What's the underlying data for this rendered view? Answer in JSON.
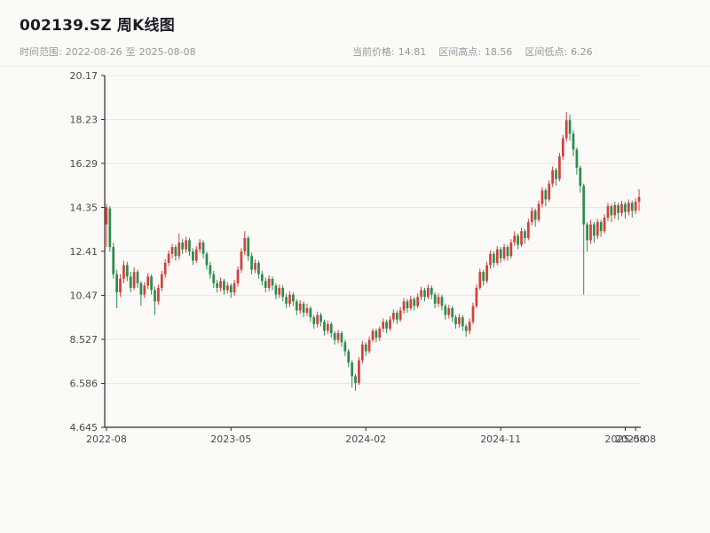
{
  "header": {
    "title": "002139.SZ 周K线图"
  },
  "meta": {
    "time_range_label": "时间范围:",
    "time_start": "2022-08-26",
    "time_separator": "至",
    "time_end": "2025-08-08",
    "current_price_label": "当前价格:",
    "current_price": "14.81",
    "range_high_label": "区间高点:",
    "range_high": "18.56",
    "range_low_label": "区间低点:",
    "range_low": "6.26"
  },
  "chart_data": {
    "type": "candlestick",
    "title": "002139.SZ 周K线图",
    "interval": "weekly",
    "start_date": "2022-08-26",
    "end_date": "2025-08-08",
    "current_price": 14.81,
    "range_high": 18.56,
    "range_low": 6.26,
    "grid": "horizontal",
    "legend_position": "none",
    "up_color": "#d2413a",
    "down_color": "#2e8b50",
    "axis_color": "#2b2b2b",
    "grid_color": "#e8e7e2",
    "ylim": [
      4.645,
      20.17
    ],
    "y_ticks": [
      {
        "label": "20.17",
        "value": 20.17
      },
      {
        "label": "18.23",
        "value": 18.23
      },
      {
        "label": "16.29",
        "value": 16.29
      },
      {
        "label": "14.35",
        "value": 14.35
      },
      {
        "label": "12.41",
        "value": 12.41
      },
      {
        "label": "10.47",
        "value": 10.47
      },
      {
        "label": "8.527",
        "value": 8.527
      },
      {
        "label": "6.586",
        "value": 6.586
      },
      {
        "label": "4.645",
        "value": 4.645
      }
    ],
    "x_ticks": [
      {
        "index": 0,
        "label": "2022-08"
      },
      {
        "index": 36,
        "label": "2023-05"
      },
      {
        "index": 75,
        "label": "2024-02"
      },
      {
        "index": 114,
        "label": "2024-11"
      },
      {
        "index": 150,
        "label": "2025-08"
      },
      {
        "index": 153,
        "label": "2025-08"
      }
    ],
    "candles_format": [
      "open",
      "high",
      "low",
      "close"
    ],
    "candles": [
      [
        13.6,
        14.5,
        12.6,
        14.35
      ],
      [
        14.3,
        14.4,
        12.4,
        12.6
      ],
      [
        12.6,
        12.8,
        11.2,
        11.4
      ],
      [
        11.4,
        11.6,
        9.9,
        10.6
      ],
      [
        10.6,
        11.4,
        10.4,
        11.2
      ],
      [
        11.2,
        12.0,
        11.0,
        11.8
      ],
      [
        11.8,
        11.95,
        11.1,
        11.3
      ],
      [
        11.3,
        11.5,
        10.6,
        10.8
      ],
      [
        10.8,
        11.7,
        10.7,
        11.5
      ],
      [
        11.5,
        11.6,
        10.8,
        11.0
      ],
      [
        11.0,
        11.1,
        10.0,
        10.5
      ],
      [
        10.5,
        11.05,
        10.35,
        10.9
      ],
      [
        10.9,
        11.45,
        10.75,
        11.3
      ],
      [
        11.3,
        11.4,
        10.5,
        10.7
      ],
      [
        10.7,
        10.85,
        9.6,
        10.2
      ],
      [
        10.2,
        10.95,
        10.05,
        10.8
      ],
      [
        10.8,
        11.55,
        10.65,
        11.4
      ],
      [
        11.4,
        12.05,
        11.25,
        11.9
      ],
      [
        11.9,
        12.45,
        11.75,
        12.3
      ],
      [
        12.3,
        12.75,
        12.1,
        12.6
      ],
      [
        12.6,
        12.7,
        12.0,
        12.2
      ],
      [
        12.2,
        13.2,
        12.05,
        12.8
      ],
      [
        12.8,
        12.95,
        12.3,
        12.5
      ],
      [
        12.5,
        13.05,
        12.35,
        12.9
      ],
      [
        12.9,
        13.0,
        12.2,
        12.4
      ],
      [
        12.4,
        12.55,
        11.8,
        12.0
      ],
      [
        12.0,
        12.65,
        11.9,
        12.5
      ],
      [
        12.5,
        12.95,
        12.35,
        12.8
      ],
      [
        12.8,
        12.9,
        12.1,
        12.3
      ],
      [
        12.3,
        12.4,
        11.6,
        11.8
      ],
      [
        11.8,
        11.95,
        11.2,
        11.4
      ],
      [
        11.4,
        11.55,
        10.8,
        11.0
      ],
      [
        11.0,
        11.15,
        10.6,
        10.8
      ],
      [
        10.8,
        11.25,
        10.65,
        11.1
      ],
      [
        11.1,
        11.2,
        10.5,
        10.7
      ],
      [
        10.7,
        11.05,
        10.55,
        10.9
      ],
      [
        10.9,
        11.0,
        10.35,
        10.6
      ],
      [
        10.6,
        11.15,
        10.45,
        11.0
      ],
      [
        11.0,
        11.75,
        10.85,
        11.6
      ],
      [
        11.6,
        12.55,
        11.45,
        12.4
      ],
      [
        12.4,
        13.3,
        12.25,
        13.0
      ],
      [
        13.0,
        13.1,
        12.0,
        12.2
      ],
      [
        12.2,
        12.35,
        11.4,
        11.6
      ],
      [
        11.6,
        12.05,
        11.45,
        11.9
      ],
      [
        11.9,
        12.0,
        11.2,
        11.4
      ],
      [
        11.4,
        11.55,
        10.9,
        11.1
      ],
      [
        11.1,
        11.25,
        10.6,
        10.8
      ],
      [
        10.8,
        11.35,
        10.65,
        11.2
      ],
      [
        11.2,
        11.3,
        10.7,
        10.9
      ],
      [
        10.9,
        11.0,
        10.3,
        10.5
      ],
      [
        10.5,
        10.95,
        10.35,
        10.8
      ],
      [
        10.8,
        10.9,
        10.2,
        10.4
      ],
      [
        10.4,
        10.55,
        9.9,
        10.1
      ],
      [
        10.1,
        10.65,
        9.95,
        10.5
      ],
      [
        10.5,
        10.6,
        10.0,
        10.2
      ],
      [
        10.2,
        10.3,
        9.6,
        9.8
      ],
      [
        9.8,
        10.25,
        9.65,
        10.1
      ],
      [
        10.1,
        10.2,
        9.5,
        9.7
      ],
      [
        9.7,
        10.1,
        9.55,
        9.9
      ],
      [
        9.9,
        10.0,
        9.3,
        9.5
      ],
      [
        9.5,
        9.6,
        9.0,
        9.2
      ],
      [
        9.2,
        9.75,
        9.05,
        9.6
      ],
      [
        9.6,
        9.7,
        9.1,
        9.3
      ],
      [
        9.3,
        9.4,
        8.7,
        8.9
      ],
      [
        8.9,
        9.35,
        8.75,
        9.2
      ],
      [
        9.2,
        9.3,
        8.6,
        8.8
      ],
      [
        8.8,
        8.9,
        8.3,
        8.5
      ],
      [
        8.5,
        8.95,
        8.35,
        8.8
      ],
      [
        8.8,
        8.9,
        8.2,
        8.4
      ],
      [
        8.4,
        8.5,
        7.8,
        8.0
      ],
      [
        8.0,
        8.1,
        7.3,
        7.5
      ],
      [
        7.5,
        7.6,
        6.4,
        6.9
      ],
      [
        6.9,
        7.0,
        6.26,
        6.6
      ],
      [
        6.6,
        7.75,
        6.5,
        7.6
      ],
      [
        7.6,
        8.45,
        7.45,
        8.3
      ],
      [
        8.3,
        8.4,
        7.8,
        8.0
      ],
      [
        8.0,
        8.65,
        7.9,
        8.5
      ],
      [
        8.5,
        9.0,
        8.4,
        8.9
      ],
      [
        8.9,
        9.0,
        8.4,
        8.6
      ],
      [
        8.6,
        9.1,
        8.45,
        9.0
      ],
      [
        9.0,
        9.45,
        8.85,
        9.3
      ],
      [
        9.3,
        9.4,
        8.8,
        9.0
      ],
      [
        9.0,
        9.55,
        8.9,
        9.4
      ],
      [
        9.4,
        9.85,
        9.25,
        9.7
      ],
      [
        9.7,
        9.8,
        9.2,
        9.4
      ],
      [
        9.4,
        9.95,
        9.3,
        9.8
      ],
      [
        9.8,
        10.35,
        9.65,
        10.2
      ],
      [
        10.2,
        10.3,
        9.7,
        9.9
      ],
      [
        9.9,
        10.45,
        9.8,
        10.3
      ],
      [
        10.3,
        10.4,
        9.8,
        10.0
      ],
      [
        10.0,
        10.55,
        9.9,
        10.4
      ],
      [
        10.4,
        10.85,
        10.25,
        10.7
      ],
      [
        10.7,
        10.8,
        10.2,
        10.4
      ],
      [
        10.4,
        10.95,
        10.3,
        10.8
      ],
      [
        10.8,
        10.9,
        10.3,
        10.5
      ],
      [
        10.5,
        10.6,
        9.9,
        10.1
      ],
      [
        10.1,
        10.55,
        9.95,
        10.4
      ],
      [
        10.4,
        10.5,
        9.8,
        10.0
      ],
      [
        10.0,
        10.1,
        9.4,
        9.6
      ],
      [
        9.6,
        10.05,
        9.45,
        9.9
      ],
      [
        9.9,
        10.0,
        9.3,
        9.5
      ],
      [
        9.5,
        9.6,
        9.0,
        9.2
      ],
      [
        9.2,
        9.65,
        9.05,
        9.5
      ],
      [
        9.5,
        9.6,
        8.9,
        9.1
      ],
      [
        9.1,
        9.2,
        8.65,
        8.9
      ],
      [
        8.9,
        9.45,
        8.75,
        9.3
      ],
      [
        9.3,
        10.15,
        9.2,
        10.0
      ],
      [
        10.0,
        10.95,
        9.9,
        10.8
      ],
      [
        10.8,
        11.65,
        10.7,
        11.5
      ],
      [
        11.5,
        11.6,
        10.9,
        11.1
      ],
      [
        11.1,
        11.95,
        11.0,
        11.8
      ],
      [
        11.8,
        12.45,
        11.65,
        12.3
      ],
      [
        12.3,
        12.4,
        11.7,
        11.9
      ],
      [
        11.9,
        12.65,
        11.8,
        12.5
      ],
      [
        12.5,
        12.6,
        11.9,
        12.1
      ],
      [
        12.1,
        12.75,
        12.0,
        12.6
      ],
      [
        12.6,
        12.7,
        12.0,
        12.2
      ],
      [
        12.2,
        12.95,
        12.1,
        12.8
      ],
      [
        12.8,
        13.3,
        12.65,
        13.1
      ],
      [
        13.1,
        13.2,
        12.5,
        12.7
      ],
      [
        12.7,
        13.45,
        12.6,
        13.3
      ],
      [
        13.3,
        13.4,
        12.75,
        13.0
      ],
      [
        13.0,
        13.85,
        12.9,
        13.7
      ],
      [
        13.7,
        14.35,
        13.55,
        14.2
      ],
      [
        14.2,
        14.3,
        13.5,
        13.8
      ],
      [
        13.8,
        14.65,
        13.7,
        14.5
      ],
      [
        14.5,
        15.25,
        14.35,
        15.1
      ],
      [
        15.1,
        15.2,
        14.4,
        14.7
      ],
      [
        14.7,
        15.55,
        14.6,
        15.4
      ],
      [
        15.4,
        16.15,
        15.25,
        16.0
      ],
      [
        16.0,
        16.1,
        15.3,
        15.6
      ],
      [
        15.6,
        16.75,
        15.5,
        16.6
      ],
      [
        16.6,
        17.55,
        16.45,
        17.4
      ],
      [
        17.4,
        18.56,
        17.25,
        18.2
      ],
      [
        18.2,
        18.45,
        17.3,
        17.6
      ],
      [
        17.6,
        17.75,
        16.6,
        16.9
      ],
      [
        16.9,
        17.0,
        15.8,
        16.1
      ],
      [
        16.1,
        16.2,
        15.0,
        15.3
      ],
      [
        15.3,
        15.4,
        10.5,
        13.6
      ],
      [
        13.6,
        13.7,
        12.4,
        12.9
      ],
      [
        12.9,
        13.8,
        12.75,
        13.6
      ],
      [
        13.6,
        13.7,
        12.8,
        13.1
      ],
      [
        13.1,
        13.85,
        12.95,
        13.7
      ],
      [
        13.7,
        13.8,
        13.05,
        13.3
      ],
      [
        13.3,
        14.05,
        13.2,
        13.9
      ],
      [
        13.9,
        14.55,
        13.75,
        14.4
      ],
      [
        14.4,
        14.5,
        13.7,
        14.0
      ],
      [
        14.0,
        14.6,
        13.85,
        14.45
      ],
      [
        14.45,
        14.55,
        13.8,
        14.1
      ],
      [
        14.1,
        14.65,
        13.95,
        14.5
      ],
      [
        14.5,
        14.6,
        13.85,
        14.15
      ],
      [
        14.15,
        14.7,
        14.0,
        14.55
      ],
      [
        14.55,
        14.65,
        13.9,
        14.2
      ],
      [
        14.2,
        14.75,
        14.05,
        14.6
      ],
      [
        14.6,
        15.15,
        14.2,
        14.81
      ]
    ]
  }
}
